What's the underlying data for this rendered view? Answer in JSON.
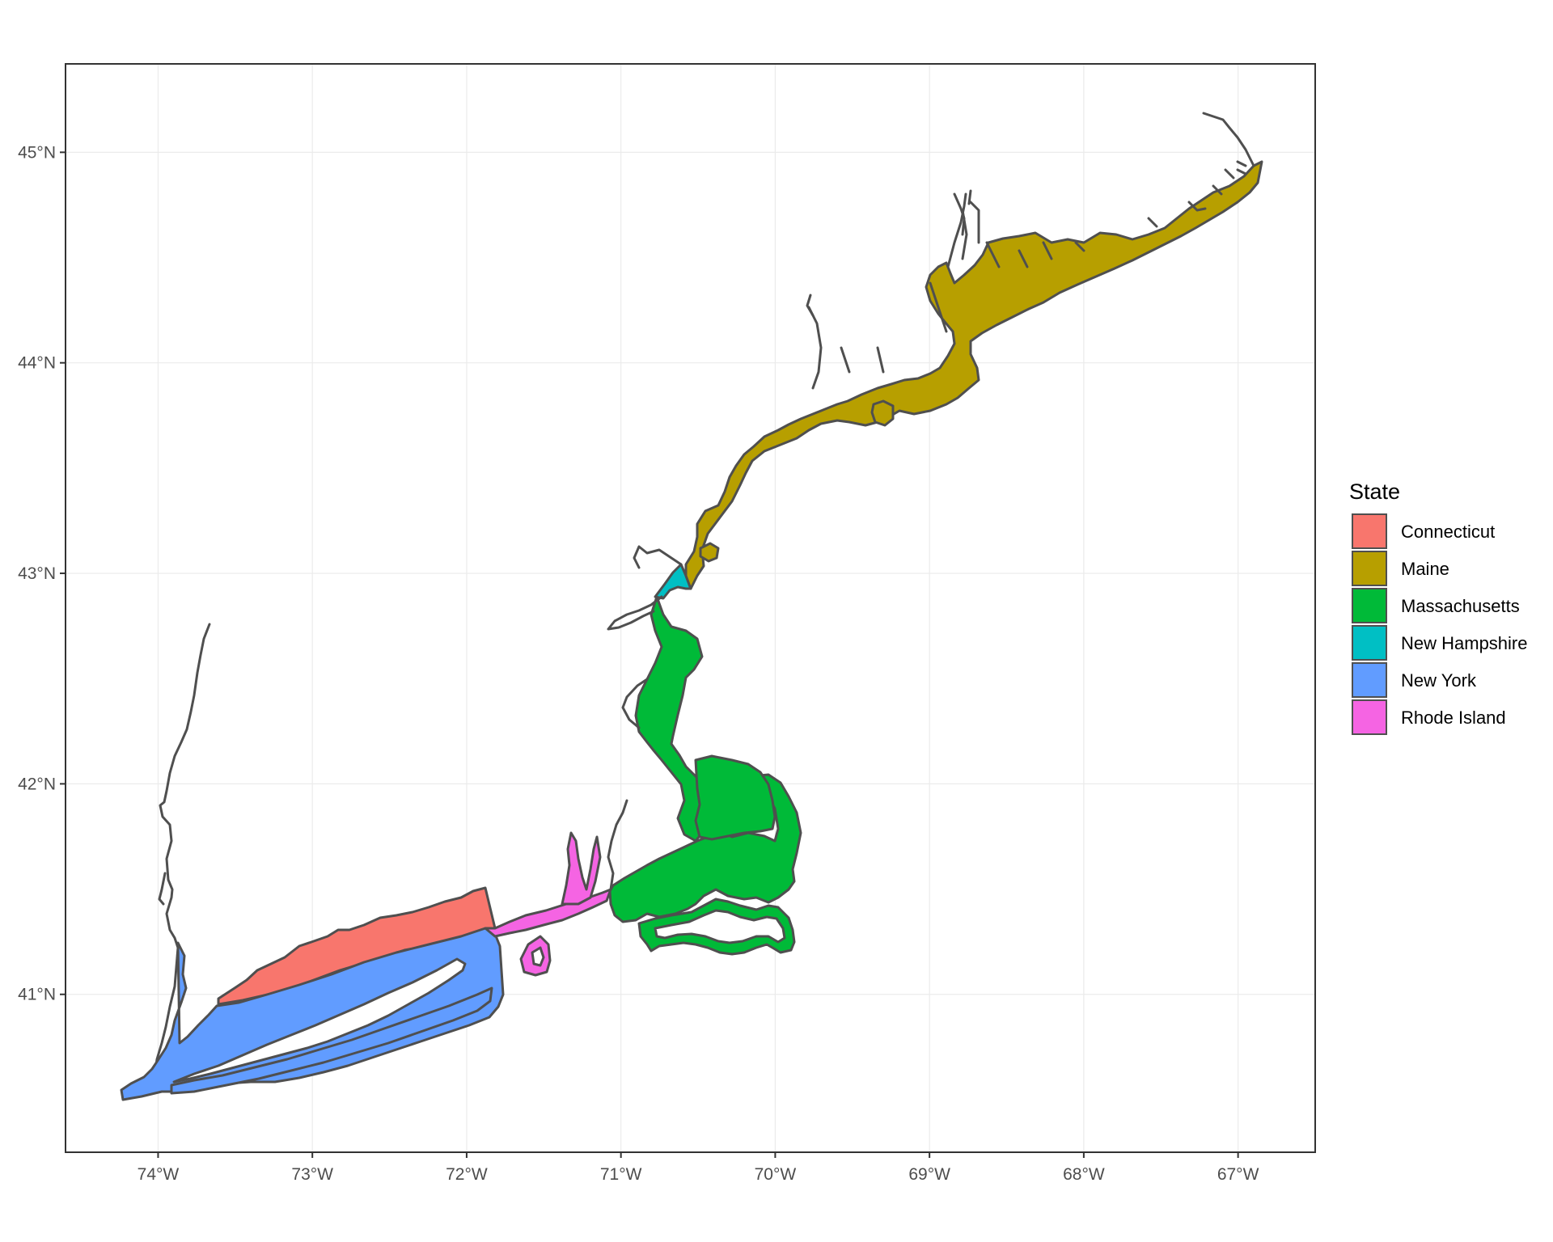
{
  "map": {
    "x_axis": {
      "ticks": [
        {
          "value": -74,
          "label": "74°W"
        },
        {
          "value": -73,
          "label": "73°W"
        },
        {
          "value": -72,
          "label": "72°W"
        },
        {
          "value": -71,
          "label": "71°W"
        },
        {
          "value": -70,
          "label": "70°W"
        },
        {
          "value": -69,
          "label": "69°W"
        },
        {
          "value": -68,
          "label": "68°W"
        },
        {
          "value": -67,
          "label": "67°W"
        }
      ],
      "range": [
        -74.6,
        -66.5
      ]
    },
    "y_axis": {
      "ticks": [
        {
          "value": 41,
          "label": "41°N"
        },
        {
          "value": 42,
          "label": "42°N"
        },
        {
          "value": 43,
          "label": "43°N"
        },
        {
          "value": 44,
          "label": "44°N"
        },
        {
          "value": 45,
          "label": "45°N"
        }
      ],
      "range": [
        40.25,
        45.42
      ]
    },
    "grid": true,
    "legend": {
      "title": "State",
      "position": "right",
      "entries": [
        {
          "name": "Connecticut",
          "color": "#F8766D"
        },
        {
          "name": "Maine",
          "color": "#B79F00"
        },
        {
          "name": "Massachusetts",
          "color": "#00BA38"
        },
        {
          "name": "New Hampshire",
          "color": "#00BFC4"
        },
        {
          "name": "New York",
          "color": "#619CFF"
        },
        {
          "name": "Rhode Island",
          "color": "#F564E3"
        }
      ]
    },
    "outline_color": "#4f4f4f"
  }
}
